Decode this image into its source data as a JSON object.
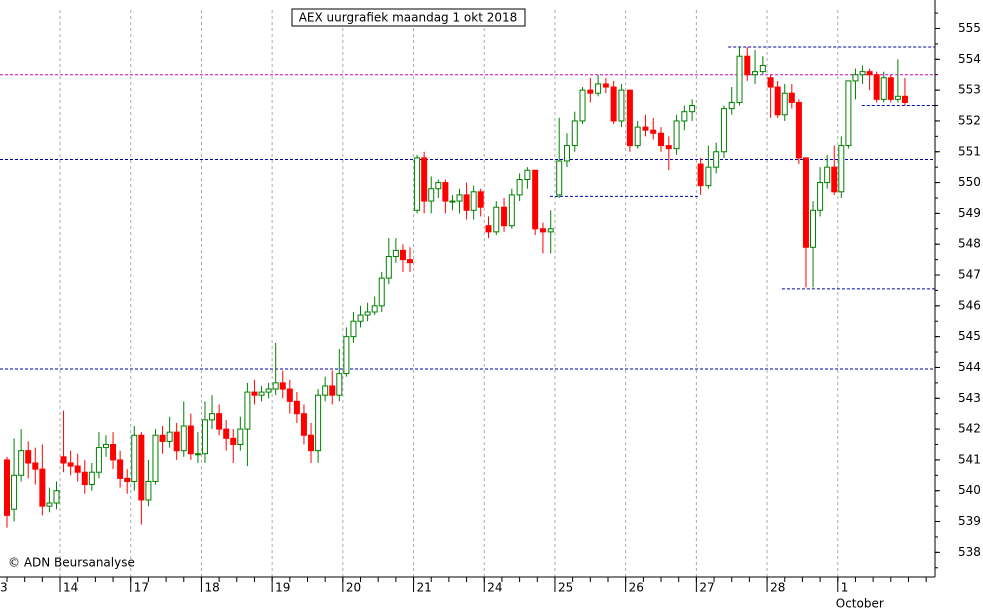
{
  "chart_data": {
    "type": "candlestick",
    "title": "AEX uurgrafiek maandag 1 okt 2018",
    "watermark": "© ADN Beursanalyse",
    "x_sublabel": "October",
    "up_color": "#008000",
    "down_color": "#ff0000",
    "xlim": [
      0.151,
      13.375
    ],
    "xticks": [
      {
        "value": 0,
        "label": "3"
      },
      {
        "value": 1,
        "label": "14"
      },
      {
        "value": 2,
        "label": "17"
      },
      {
        "value": 3,
        "label": "18"
      },
      {
        "value": 4,
        "label": "19"
      },
      {
        "value": 5,
        "label": "20"
      },
      {
        "value": 6,
        "label": "21"
      },
      {
        "value": 7,
        "label": "24"
      },
      {
        "value": 8,
        "label": "25"
      },
      {
        "value": 9,
        "label": "26"
      },
      {
        "value": 10,
        "label": "27"
      },
      {
        "value": 11,
        "label": "28"
      },
      {
        "value": 12,
        "label": "1"
      }
    ],
    "ylim": [
      537.2,
      555.6
    ],
    "yticks": [
      538,
      539,
      540,
      541,
      542,
      543,
      544,
      545,
      546,
      547,
      548,
      549,
      550,
      551,
      552,
      553,
      554,
      555
    ],
    "hlines": [
      {
        "value": 553.5,
        "color": "#cc00cc",
        "from": 0.151,
        "to": 13.375
      },
      {
        "value": 550.75,
        "color": "#0000aa",
        "from": 0.151,
        "to": 13.375
      },
      {
        "value": 543.95,
        "color": "#0000aa",
        "from": 0.151,
        "to": 13.375
      },
      {
        "value": 549.55,
        "color": "#0000aa",
        "from": 7.93,
        "to": 10.05
      },
      {
        "value": 546.55,
        "color": "#0000aa",
        "from": 11.21,
        "to": 13.375
      },
      {
        "value": 552.5,
        "color": "#0000aa",
        "from": 12.34,
        "to": 13.375
      },
      {
        "value": 554.4,
        "color": "#0000aa",
        "from": 10.45,
        "to": 13.375
      }
    ],
    "x": [
      0.25,
      0.35,
      0.45,
      0.55,
      0.65,
      0.75,
      0.85,
      0.95,
      1.05,
      1.15,
      1.25,
      1.35,
      1.45,
      1.55,
      1.65,
      1.75,
      1.85,
      1.95,
      2.05,
      2.15,
      2.25,
      2.35,
      2.45,
      2.55,
      2.65,
      2.75,
      2.85,
      2.95,
      3.05,
      3.15,
      3.25,
      3.35,
      3.45,
      3.55,
      3.65,
      3.75,
      3.85,
      3.95,
      4.05,
      4.15,
      4.25,
      4.35,
      4.45,
      4.55,
      4.65,
      4.75,
      4.85,
      4.95,
      5.05,
      5.15,
      5.25,
      5.35,
      5.45,
      5.55,
      5.65,
      5.75,
      5.85,
      5.95,
      6.05,
      6.15,
      6.25,
      6.35,
      6.45,
      6.55,
      6.65,
      6.75,
      6.85,
      6.95,
      7.06,
      7.17,
      7.28,
      7.39,
      7.5,
      7.61,
      7.72,
      7.83,
      7.94,
      8.06,
      8.17,
      8.28,
      8.39,
      8.5,
      8.61,
      8.72,
      8.83,
      8.94,
      9.06,
      9.17,
      9.28,
      9.39,
      9.5,
      9.61,
      9.72,
      9.83,
      9.94,
      10.06,
      10.17,
      10.28,
      10.39,
      10.5,
      10.61,
      10.72,
      10.83,
      10.94,
      11.05,
      11.15,
      11.25,
      11.35,
      11.45,
      11.55,
      11.65,
      11.75,
      11.85,
      11.95,
      12.05,
      12.15,
      12.25,
      12.35,
      12.45,
      12.55,
      12.65,
      12.75,
      12.85,
      12.95
    ],
    "open": [
      541.0,
      539.4,
      540.5,
      541.3,
      540.9,
      540.7,
      539.5,
      539.6,
      541.1,
      540.9,
      540.8,
      540.6,
      540.2,
      540.6,
      541.4,
      541.5,
      541.0,
      540.4,
      540.3,
      541.8,
      539.7,
      540.3,
      541.8,
      541.6,
      541.9,
      541.3,
      542.1,
      541.2,
      541.2,
      542.3,
      542.5,
      542.0,
      541.7,
      541.5,
      542.0,
      543.2,
      543.1,
      543.2,
      543.3,
      543.5,
      543.3,
      542.9,
      542.5,
      541.8,
      541.3,
      543.1,
      543.4,
      543.1,
      543.8,
      545.0,
      545.5,
      545.7,
      545.8,
      546.0,
      546.9,
      547.6,
      547.8,
      547.5,
      549.1,
      550.8,
      549.4,
      549.8,
      550.0,
      549.4,
      549.4,
      549.6,
      549.1,
      549.7,
      548.6,
      548.4,
      549.2,
      548.6,
      549.6,
      550.1,
      550.4,
      548.5,
      548.4,
      549.6,
      550.7,
      551.2,
      552.0,
      553.0,
      552.9,
      553.2,
      553.1,
      552.0,
      553.0,
      551.2,
      551.8,
      551.7,
      551.6,
      551.2,
      551.1,
      552.0,
      552.3,
      550.6,
      549.9,
      550.5,
      551.0,
      552.4,
      552.6,
      554.1,
      553.5,
      553.6,
      553.4,
      553.1,
      552.2,
      552.9,
      552.6,
      550.8,
      547.9,
      549.1,
      550.0,
      550.5,
      549.7,
      551.2,
      553.3,
      553.5,
      553.6,
      553.5,
      552.7,
      553.4,
      552.7,
      552.8
    ],
    "high": [
      541.1,
      541.7,
      542.0,
      541.6,
      541.4,
      541.5,
      540.1,
      540.3,
      542.6,
      541.3,
      541.2,
      541.0,
      540.9,
      541.9,
      541.8,
      541.9,
      541.3,
      540.7,
      542.1,
      541.9,
      541.0,
      542.0,
      542.1,
      542.4,
      542.2,
      542.9,
      542.5,
      541.9,
      542.9,
      543.1,
      542.8,
      542.3,
      542.0,
      542.4,
      543.5,
      543.6,
      543.4,
      543.5,
      544.8,
      543.9,
      543.6,
      543.2,
      542.8,
      542.2,
      543.3,
      543.7,
      543.9,
      544.6,
      545.3,
      545.8,
      546.0,
      546.1,
      546.3,
      547.1,
      548.2,
      548.2,
      548.0,
      547.9,
      550.9,
      551.0,
      550.2,
      550.1,
      550.1,
      549.6,
      549.8,
      550.0,
      549.9,
      549.8,
      548.9,
      549.4,
      549.5,
      549.8,
      550.3,
      550.5,
      550.4,
      548.7,
      549.1,
      552.1,
      551.6,
      552.3,
      553.1,
      553.4,
      553.5,
      553.4,
      553.3,
      553.2,
      553.0,
      552.0,
      552.2,
      552.1,
      551.8,
      551.5,
      552.2,
      552.5,
      552.7,
      550.8,
      551.2,
      551.3,
      552.5,
      553.1,
      554.4,
      554.4,
      554.3,
      554.1,
      553.5,
      553.3,
      553.2,
      553.2,
      552.7,
      550.8,
      549.4,
      550.5,
      550.9,
      551.2,
      551.5,
      553.3,
      553.7,
      553.8,
      553.7,
      553.6,
      553.6,
      553.5,
      554.0,
      553.4
    ],
    "low": [
      538.8,
      539.0,
      540.3,
      540.4,
      540.2,
      539.2,
      539.3,
      539.4,
      540.6,
      540.5,
      540.3,
      539.9,
      540.0,
      540.4,
      541.1,
      540.7,
      540.1,
      539.9,
      540.0,
      538.9,
      539.5,
      540.2,
      541.2,
      541.4,
      541.0,
      541.1,
      541.0,
      540.9,
      540.9,
      542.0,
      541.8,
      541.3,
      540.9,
      541.3,
      540.8,
      542.8,
      542.9,
      543.0,
      543.1,
      543.0,
      542.5,
      542.2,
      541.5,
      540.9,
      540.9,
      542.9,
      542.8,
      542.9,
      543.7,
      544.8,
      545.3,
      545.5,
      545.7,
      545.8,
      546.7,
      547.4,
      547.1,
      547.1,
      549.0,
      549.0,
      549.0,
      549.5,
      549.0,
      549.1,
      549.0,
      548.8,
      548.8,
      548.9,
      548.2,
      548.3,
      548.4,
      548.5,
      549.4,
      549.8,
      548.3,
      547.7,
      547.7,
      549.5,
      550.5,
      551.0,
      551.9,
      552.6,
      552.8,
      552.9,
      551.9,
      551.8,
      551.0,
      551.1,
      551.5,
      551.4,
      551.0,
      550.4,
      550.9,
      551.7,
      552.0,
      549.6,
      549.8,
      550.3,
      550.8,
      552.2,
      552.5,
      553.3,
      553.2,
      553.5,
      552.1,
      552.1,
      552.0,
      552.4,
      550.6,
      546.6,
      546.6,
      548.9,
      549.8,
      549.6,
      549.5,
      551.1,
      552.7,
      553.2,
      553.0,
      552.6,
      552.6,
      552.6,
      552.6,
      552.5
    ],
    "close": [
      539.2,
      540.5,
      541.3,
      540.9,
      540.7,
      539.5,
      539.6,
      540.0,
      540.9,
      540.8,
      540.6,
      540.2,
      540.6,
      541.4,
      541.5,
      541.0,
      540.4,
      540.3,
      541.8,
      539.7,
      540.3,
      541.8,
      541.6,
      541.9,
      541.3,
      542.1,
      541.2,
      541.2,
      542.3,
      542.5,
      542.0,
      541.7,
      541.5,
      542.0,
      543.2,
      543.1,
      543.2,
      543.3,
      543.5,
      543.3,
      542.9,
      542.5,
      541.8,
      541.3,
      543.1,
      543.4,
      543.1,
      543.8,
      545.0,
      545.5,
      545.7,
      545.8,
      546.0,
      546.9,
      547.6,
      547.8,
      547.5,
      547.4,
      550.8,
      549.4,
      549.8,
      550.0,
      549.4,
      549.4,
      549.6,
      549.1,
      549.7,
      549.2,
      548.4,
      549.2,
      548.6,
      549.6,
      550.1,
      550.4,
      548.5,
      548.4,
      548.5,
      550.7,
      551.2,
      552.0,
      553.0,
      552.9,
      553.2,
      553.1,
      552.0,
      553.0,
      551.2,
      551.8,
      551.7,
      551.6,
      551.2,
      551.1,
      552.0,
      552.3,
      552.5,
      549.9,
      550.5,
      551.0,
      552.4,
      552.6,
      554.1,
      553.5,
      553.6,
      553.8,
      553.1,
      552.2,
      552.9,
      552.6,
      550.8,
      547.9,
      549.1,
      550.0,
      550.5,
      549.7,
      551.2,
      553.3,
      553.5,
      553.6,
      553.5,
      552.7,
      553.4,
      552.7,
      552.8,
      552.6
    ]
  }
}
